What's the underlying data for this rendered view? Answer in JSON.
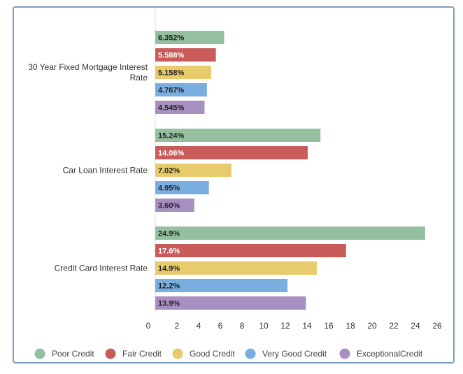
{
  "chart_data": {
    "type": "bar",
    "orientation": "horizontal",
    "categories": [
      "30 Year Fixed Mortgage Interest Rate",
      "Car Loan Interest Rate",
      "Credit Card Interest Rate"
    ],
    "category_label_lines": [
      [
        "30 Year Fixed Mortgage Interest",
        "Rate"
      ],
      [
        "Car Loan Interest Rate"
      ],
      [
        "Credit Card Interest Rate"
      ]
    ],
    "series": [
      {
        "name": "Poor Credit",
        "color": "#95c0a0",
        "label_color": "#222222",
        "values": [
          6.352,
          15.24,
          24.9
        ],
        "labels": [
          "6.352%",
          "15.24%",
          "24.9%"
        ]
      },
      {
        "name": "Fair Credit",
        "color": "#c95b5b",
        "label_color": "#ffffff",
        "values": [
          5.588,
          14.06,
          17.6
        ],
        "labels": [
          "5.588%",
          "14.06%",
          "17.6%"
        ]
      },
      {
        "name": "Good Credit",
        "color": "#e8cb6d",
        "label_color": "#222222",
        "values": [
          5.158,
          7.02,
          14.9
        ],
        "labels": [
          "5.158%",
          "7.02%",
          "14.9%"
        ]
      },
      {
        "name": "Very Good Credit",
        "color": "#7aaee0",
        "label_color": "#222222",
        "values": [
          4.767,
          4.95,
          12.2
        ],
        "labels": [
          "4.767%",
          "4.95%",
          "12.2%"
        ]
      },
      {
        "name": "ExceptionalCredit",
        "color": "#a88fc2",
        "label_color": "#222222",
        "values": [
          4.545,
          3.6,
          13.9
        ],
        "labels": [
          "4.545%",
          "3.60%",
          "13.9%"
        ]
      }
    ],
    "xlim": [
      0,
      26
    ],
    "xticks": [
      0,
      2,
      4,
      6,
      8,
      10,
      12,
      14,
      16,
      18,
      20,
      22,
      24,
      26
    ],
    "title": "",
    "xlabel": "",
    "ylabel": "",
    "grid": false,
    "legend_position": "bottom"
  }
}
